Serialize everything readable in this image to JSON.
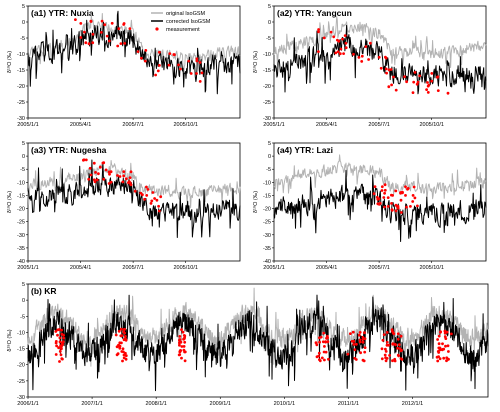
{
  "legend": {
    "original": "original IsoGSM",
    "corrected": "corrected IsoGSM",
    "measurement": "measurement"
  },
  "colors": {
    "original": "#b3b3b3",
    "corrected": "#000000",
    "measurement": "#ff0000"
  },
  "chart_data": [
    {
      "id": "a1",
      "type": "line",
      "title": "(a1) YTR: Nuxia",
      "ylabel": "δ¹⁸O (‰)",
      "ylim": [
        -30,
        5
      ],
      "yticks": [
        5,
        0,
        -5,
        -10,
        -15,
        -20,
        -25,
        -30
      ],
      "x_tick_labels": [
        "2005/1/1",
        "2005/4/1",
        "2005/7/1",
        "2005/10/1"
      ],
      "x_range_days": 365,
      "seed": 11,
      "series": [
        {
          "name": "original IsoGSM",
          "baseline": [
            [
              0,
              -9
            ],
            [
              80,
              -6
            ],
            [
              100,
              -1
            ],
            [
              180,
              -3
            ],
            [
              200,
              -10
            ],
            [
              290,
              -11
            ],
            [
              365,
              -9
            ]
          ],
          "noise": 2.5
        },
        {
          "name": "corrected IsoGSM",
          "baseline": [
            [
              0,
              -11
            ],
            [
              80,
              -8
            ],
            [
              100,
              -3
            ],
            [
              180,
              -5
            ],
            [
              200,
              -12
            ],
            [
              290,
              -15
            ],
            [
              365,
              -12
            ]
          ],
          "noise": 4.5
        }
      ],
      "measurement": {
        "day_range": [
          80,
          300
        ],
        "count": 45,
        "baseline": [
          [
            80,
            -3
          ],
          [
            180,
            -4
          ],
          [
            200,
            -12
          ],
          [
            300,
            -15
          ]
        ],
        "noise": 4
      }
    },
    {
      "id": "a2",
      "type": "line",
      "title": "(a2) YTR: Yangcun",
      "ylabel": "δ¹⁸O (‰)",
      "ylim": [
        -30,
        5
      ],
      "yticks": [
        5,
        0,
        -5,
        -10,
        -15,
        -20,
        -25,
        -30
      ],
      "x_tick_labels": [
        "2005/1/1",
        "2005/4/1",
        "2005/7/1",
        "2005/10/1"
      ],
      "x_range_days": 365,
      "seed": 23,
      "series": [
        {
          "name": "original IsoGSM",
          "baseline": [
            [
              0,
              -9
            ],
            [
              80,
              -5
            ],
            [
              120,
              -1
            ],
            [
              180,
              -3
            ],
            [
              200,
              -9
            ],
            [
              290,
              -10
            ],
            [
              365,
              -7
            ]
          ],
          "noise": 2.5
        },
        {
          "name": "corrected IsoGSM",
          "baseline": [
            [
              0,
              -15
            ],
            [
              80,
              -10
            ],
            [
              120,
              -7
            ],
            [
              180,
              -9
            ],
            [
              200,
              -16
            ],
            [
              290,
              -17
            ],
            [
              365,
              -16
            ]
          ],
          "noise": 4.5
        }
      ],
      "measurement": {
        "day_range": [
          70,
          300
        ],
        "count": 55,
        "baseline": [
          [
            70,
            -6
          ],
          [
            180,
            -10
          ],
          [
            200,
            -18
          ],
          [
            300,
            -20
          ]
        ],
        "noise": 4
      }
    },
    {
      "id": "a3",
      "type": "line",
      "title": "(a3) YTR: Nugesha",
      "ylabel": "δ¹⁸O (‰)",
      "ylim": [
        -40,
        5
      ],
      "yticks": [
        5,
        0,
        -5,
        -10,
        -15,
        -20,
        -25,
        -30,
        -35,
        -40
      ],
      "x_tick_labels": [
        "2005/1/1",
        "2005/4/1",
        "2005/7/1",
        "2005/10/1"
      ],
      "x_range_days": 365,
      "seed": 37,
      "series": [
        {
          "name": "original IsoGSM",
          "baseline": [
            [
              0,
              -12
            ],
            [
              80,
              -8
            ],
            [
              120,
              -5
            ],
            [
              180,
              -7
            ],
            [
              200,
              -13
            ],
            [
              290,
              -14
            ],
            [
              365,
              -12
            ]
          ],
          "noise": 3
        },
        {
          "name": "corrected IsoGSM",
          "baseline": [
            [
              0,
              -17
            ],
            [
              80,
              -14
            ],
            [
              120,
              -11
            ],
            [
              180,
              -12
            ],
            [
              200,
              -20
            ],
            [
              290,
              -22
            ],
            [
              365,
              -20
            ]
          ],
          "noise": 5.5
        }
      ],
      "measurement": {
        "day_range": [
          90,
          230
        ],
        "count": 50,
        "baseline": [
          [
            90,
            -5
          ],
          [
            180,
            -8
          ],
          [
            200,
            -15
          ],
          [
            230,
            -18
          ]
        ],
        "noise": 4
      }
    },
    {
      "id": "a4",
      "type": "line",
      "title": "(a4) YTR: Lazi",
      "ylabel": "δ¹⁸O (‰)",
      "ylim": [
        -40,
        5
      ],
      "yticks": [
        5,
        0,
        -5,
        -10,
        -15,
        -20,
        -25,
        -30,
        -35,
        -40
      ],
      "x_tick_labels": [
        "2005/1/1",
        "2005/4/1",
        "2005/7/1",
        "2005/10/1"
      ],
      "x_range_days": 365,
      "seed": 41,
      "series": [
        {
          "name": "original IsoGSM",
          "baseline": [
            [
              0,
              -10
            ],
            [
              80,
              -6
            ],
            [
              120,
              -4
            ],
            [
              180,
              -6
            ],
            [
              200,
              -12
            ],
            [
              290,
              -12
            ],
            [
              365,
              -10
            ]
          ],
          "noise": 3
        },
        {
          "name": "corrected IsoGSM",
          "baseline": [
            [
              0,
              -20
            ],
            [
              80,
              -17
            ],
            [
              120,
              -15
            ],
            [
              180,
              -16
            ],
            [
              200,
              -22
            ],
            [
              290,
              -22
            ],
            [
              365,
              -20
            ]
          ],
          "noise": 5.5
        }
      ],
      "measurement": {
        "day_range": [
          170,
          250
        ],
        "count": 45,
        "baseline": [
          [
            170,
            -12
          ],
          [
            210,
            -18
          ],
          [
            250,
            -14
          ]
        ],
        "noise": 5
      }
    },
    {
      "id": "b",
      "type": "line",
      "title": "(b) KR",
      "ylabel": "δ¹⁸O (‰)",
      "ylim": [
        -30,
        5
      ],
      "yticks": [
        5,
        0,
        -5,
        -10,
        -15,
        -20,
        -25,
        -30
      ],
      "x_tick_labels": [
        "2006/1/1",
        "2007/1/1",
        "2008/1/1",
        "2009/1/1",
        "2010/1/1",
        "2011/1/1",
        "2012/1/1"
      ],
      "x_range_days": 2620,
      "seed": 53,
      "series": [
        {
          "name": "original IsoGSM",
          "baseline": [
            [
              0,
              -8
            ],
            [
              2620,
              -8
            ]
          ],
          "noise": 4,
          "seasonal": 4
        },
        {
          "name": "corrected IsoGSM",
          "baseline": [
            [
              0,
              -12
            ],
            [
              2620,
              -12
            ]
          ],
          "noise": 5.5,
          "seasonal": 5
        }
      ],
      "measurement": {
        "count": 210,
        "clusters": [
          [
            150,
            210
          ],
          [
            500,
            560
          ],
          [
            860,
            900
          ],
          [
            1640,
            1720
          ],
          [
            1800,
            1920
          ],
          [
            2000,
            2130
          ],
          [
            2330,
            2420
          ]
        ],
        "baseline": [
          [
            0,
            -14
          ],
          [
            2620,
            -14
          ]
        ],
        "noise": 5
      }
    }
  ]
}
